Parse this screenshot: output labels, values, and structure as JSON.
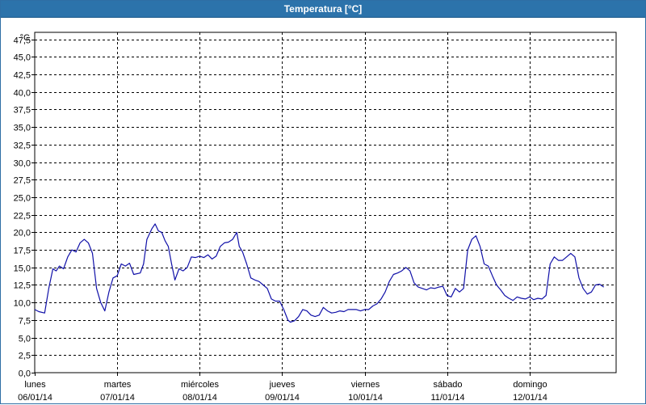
{
  "window": {
    "title": "Temperatura [°C]"
  },
  "colors": {
    "titlebar": "#2c73ab",
    "series": "#1010a8",
    "grid": "#000000"
  },
  "chart_data": {
    "type": "line",
    "title": "Temperatura [°C]",
    "ylabel": "°C",
    "ylim": [
      0,
      48.5
    ],
    "yticks": [
      "0,0",
      "2,5",
      "5,0",
      "7,5",
      "10,0",
      "12,5",
      "15,0",
      "17,5",
      "20,0",
      "22,5",
      "25,0",
      "27,5",
      "30,0",
      "32,5",
      "35,0",
      "37,5",
      "40,0",
      "42,5",
      "45,0",
      "47,5"
    ],
    "xlim": [
      0,
      7.05
    ],
    "xticks": [
      {
        "day": "lunes",
        "date": "06/01/14"
      },
      {
        "day": "martes",
        "date": "07/01/14"
      },
      {
        "day": "miércoles",
        "date": "08/01/14"
      },
      {
        "day": "jueves",
        "date": "09/01/14"
      },
      {
        "day": "viernes",
        "date": "10/01/14"
      },
      {
        "day": "sábado",
        "date": "11/01/14"
      },
      {
        "day": "domingo",
        "date": "12/01/14"
      }
    ],
    "grid": true,
    "series": [
      {
        "points": [
          [
            0.0,
            9.0
          ],
          [
            0.05,
            8.7
          ],
          [
            0.12,
            8.5
          ],
          [
            0.17,
            12.0
          ],
          [
            0.22,
            14.8
          ],
          [
            0.26,
            14.5
          ],
          [
            0.3,
            15.2
          ],
          [
            0.35,
            14.8
          ],
          [
            0.4,
            16.5
          ],
          [
            0.45,
            17.5
          ],
          [
            0.5,
            17.2
          ],
          [
            0.55,
            18.5
          ],
          [
            0.6,
            19.0
          ],
          [
            0.65,
            18.5
          ],
          [
            0.7,
            17.0
          ],
          [
            0.75,
            12.0
          ],
          [
            0.8,
            10.0
          ],
          [
            0.85,
            8.8
          ],
          [
            0.9,
            11.5
          ],
          [
            0.95,
            13.5
          ],
          [
            1.0,
            13.8
          ],
          [
            1.05,
            15.5
          ],
          [
            1.1,
            15.2
          ],
          [
            1.15,
            15.6
          ],
          [
            1.2,
            14.0
          ],
          [
            1.28,
            14.2
          ],
          [
            1.32,
            15.5
          ],
          [
            1.36,
            19.0
          ],
          [
            1.42,
            20.5
          ],
          [
            1.46,
            21.2
          ],
          [
            1.5,
            20.2
          ],
          [
            1.54,
            20.0
          ],
          [
            1.58,
            18.8
          ],
          [
            1.62,
            18.0
          ],
          [
            1.66,
            15.5
          ],
          [
            1.7,
            13.2
          ],
          [
            1.75,
            14.8
          ],
          [
            1.8,
            14.5
          ],
          [
            1.85,
            15.0
          ],
          [
            1.9,
            16.5
          ],
          [
            1.95,
            16.4
          ],
          [
            2.0,
            16.6
          ],
          [
            2.05,
            16.4
          ],
          [
            2.1,
            16.8
          ],
          [
            2.15,
            16.2
          ],
          [
            2.2,
            16.6
          ],
          [
            2.25,
            18.0
          ],
          [
            2.3,
            18.5
          ],
          [
            2.35,
            18.6
          ],
          [
            2.4,
            19.0
          ],
          [
            2.45,
            20.0
          ],
          [
            2.48,
            18.0
          ],
          [
            2.52,
            17.2
          ],
          [
            2.57,
            15.5
          ],
          [
            2.62,
            13.5
          ],
          [
            2.67,
            13.2
          ],
          [
            2.72,
            13.0
          ],
          [
            2.77,
            12.5
          ],
          [
            2.82,
            12.0
          ],
          [
            2.87,
            10.5
          ],
          [
            2.92,
            10.2
          ],
          [
            2.97,
            10.2
          ],
          [
            3.02,
            9.0
          ],
          [
            3.07,
            7.5
          ],
          [
            3.1,
            7.2
          ],
          [
            3.15,
            7.4
          ],
          [
            3.2,
            8.0
          ],
          [
            3.25,
            9.0
          ],
          [
            3.3,
            8.8
          ],
          [
            3.35,
            8.2
          ],
          [
            3.4,
            8.0
          ],
          [
            3.45,
            8.2
          ],
          [
            3.5,
            9.3
          ],
          [
            3.55,
            8.8
          ],
          [
            3.6,
            8.5
          ],
          [
            3.65,
            8.6
          ],
          [
            3.7,
            8.8
          ],
          [
            3.75,
            8.7
          ],
          [
            3.8,
            9.0
          ],
          [
            3.85,
            9.0
          ],
          [
            3.9,
            9.0
          ],
          [
            3.95,
            8.8
          ],
          [
            4.0,
            9.0
          ],
          [
            4.05,
            9.0
          ],
          [
            4.1,
            9.5
          ],
          [
            4.15,
            9.8
          ],
          [
            4.2,
            10.5
          ],
          [
            4.25,
            11.5
          ],
          [
            4.3,
            13.0
          ],
          [
            4.35,
            14.0
          ],
          [
            4.4,
            14.2
          ],
          [
            4.45,
            14.5
          ],
          [
            4.5,
            15.0
          ],
          [
            4.55,
            14.5
          ],
          [
            4.6,
            12.8
          ],
          [
            4.65,
            12.2
          ],
          [
            4.7,
            12.0
          ],
          [
            4.75,
            11.8
          ],
          [
            4.8,
            12.1
          ],
          [
            4.85,
            12.0
          ],
          [
            4.9,
            12.2
          ],
          [
            4.95,
            12.3
          ],
          [
            5.0,
            11.0
          ],
          [
            5.05,
            10.8
          ],
          [
            5.1,
            12.0
          ],
          [
            5.15,
            11.5
          ],
          [
            5.2,
            12.0
          ],
          [
            5.25,
            17.5
          ],
          [
            5.3,
            19.0
          ],
          [
            5.35,
            19.5
          ],
          [
            5.4,
            18.0
          ],
          [
            5.45,
            15.5
          ],
          [
            5.5,
            15.2
          ],
          [
            5.55,
            13.8
          ],
          [
            5.6,
            12.5
          ],
          [
            5.65,
            11.8
          ],
          [
            5.7,
            11.0
          ],
          [
            5.75,
            10.6
          ],
          [
            5.8,
            10.3
          ],
          [
            5.85,
            10.8
          ],
          [
            5.9,
            10.6
          ],
          [
            5.95,
            10.5
          ],
          [
            6.0,
            10.8
          ],
          [
            6.05,
            10.4
          ],
          [
            6.1,
            10.6
          ],
          [
            6.15,
            10.5
          ],
          [
            6.2,
            11.0
          ],
          [
            6.25,
            15.5
          ],
          [
            6.3,
            16.5
          ],
          [
            6.35,
            16.0
          ],
          [
            6.4,
            16.0
          ],
          [
            6.45,
            16.5
          ],
          [
            6.5,
            17.0
          ],
          [
            6.55,
            16.5
          ],
          [
            6.6,
            13.5
          ],
          [
            6.65,
            12.0
          ],
          [
            6.7,
            11.2
          ],
          [
            6.75,
            11.5
          ],
          [
            6.8,
            12.5
          ],
          [
            6.85,
            12.6
          ],
          [
            6.9,
            12.2
          ]
        ]
      }
    ]
  }
}
